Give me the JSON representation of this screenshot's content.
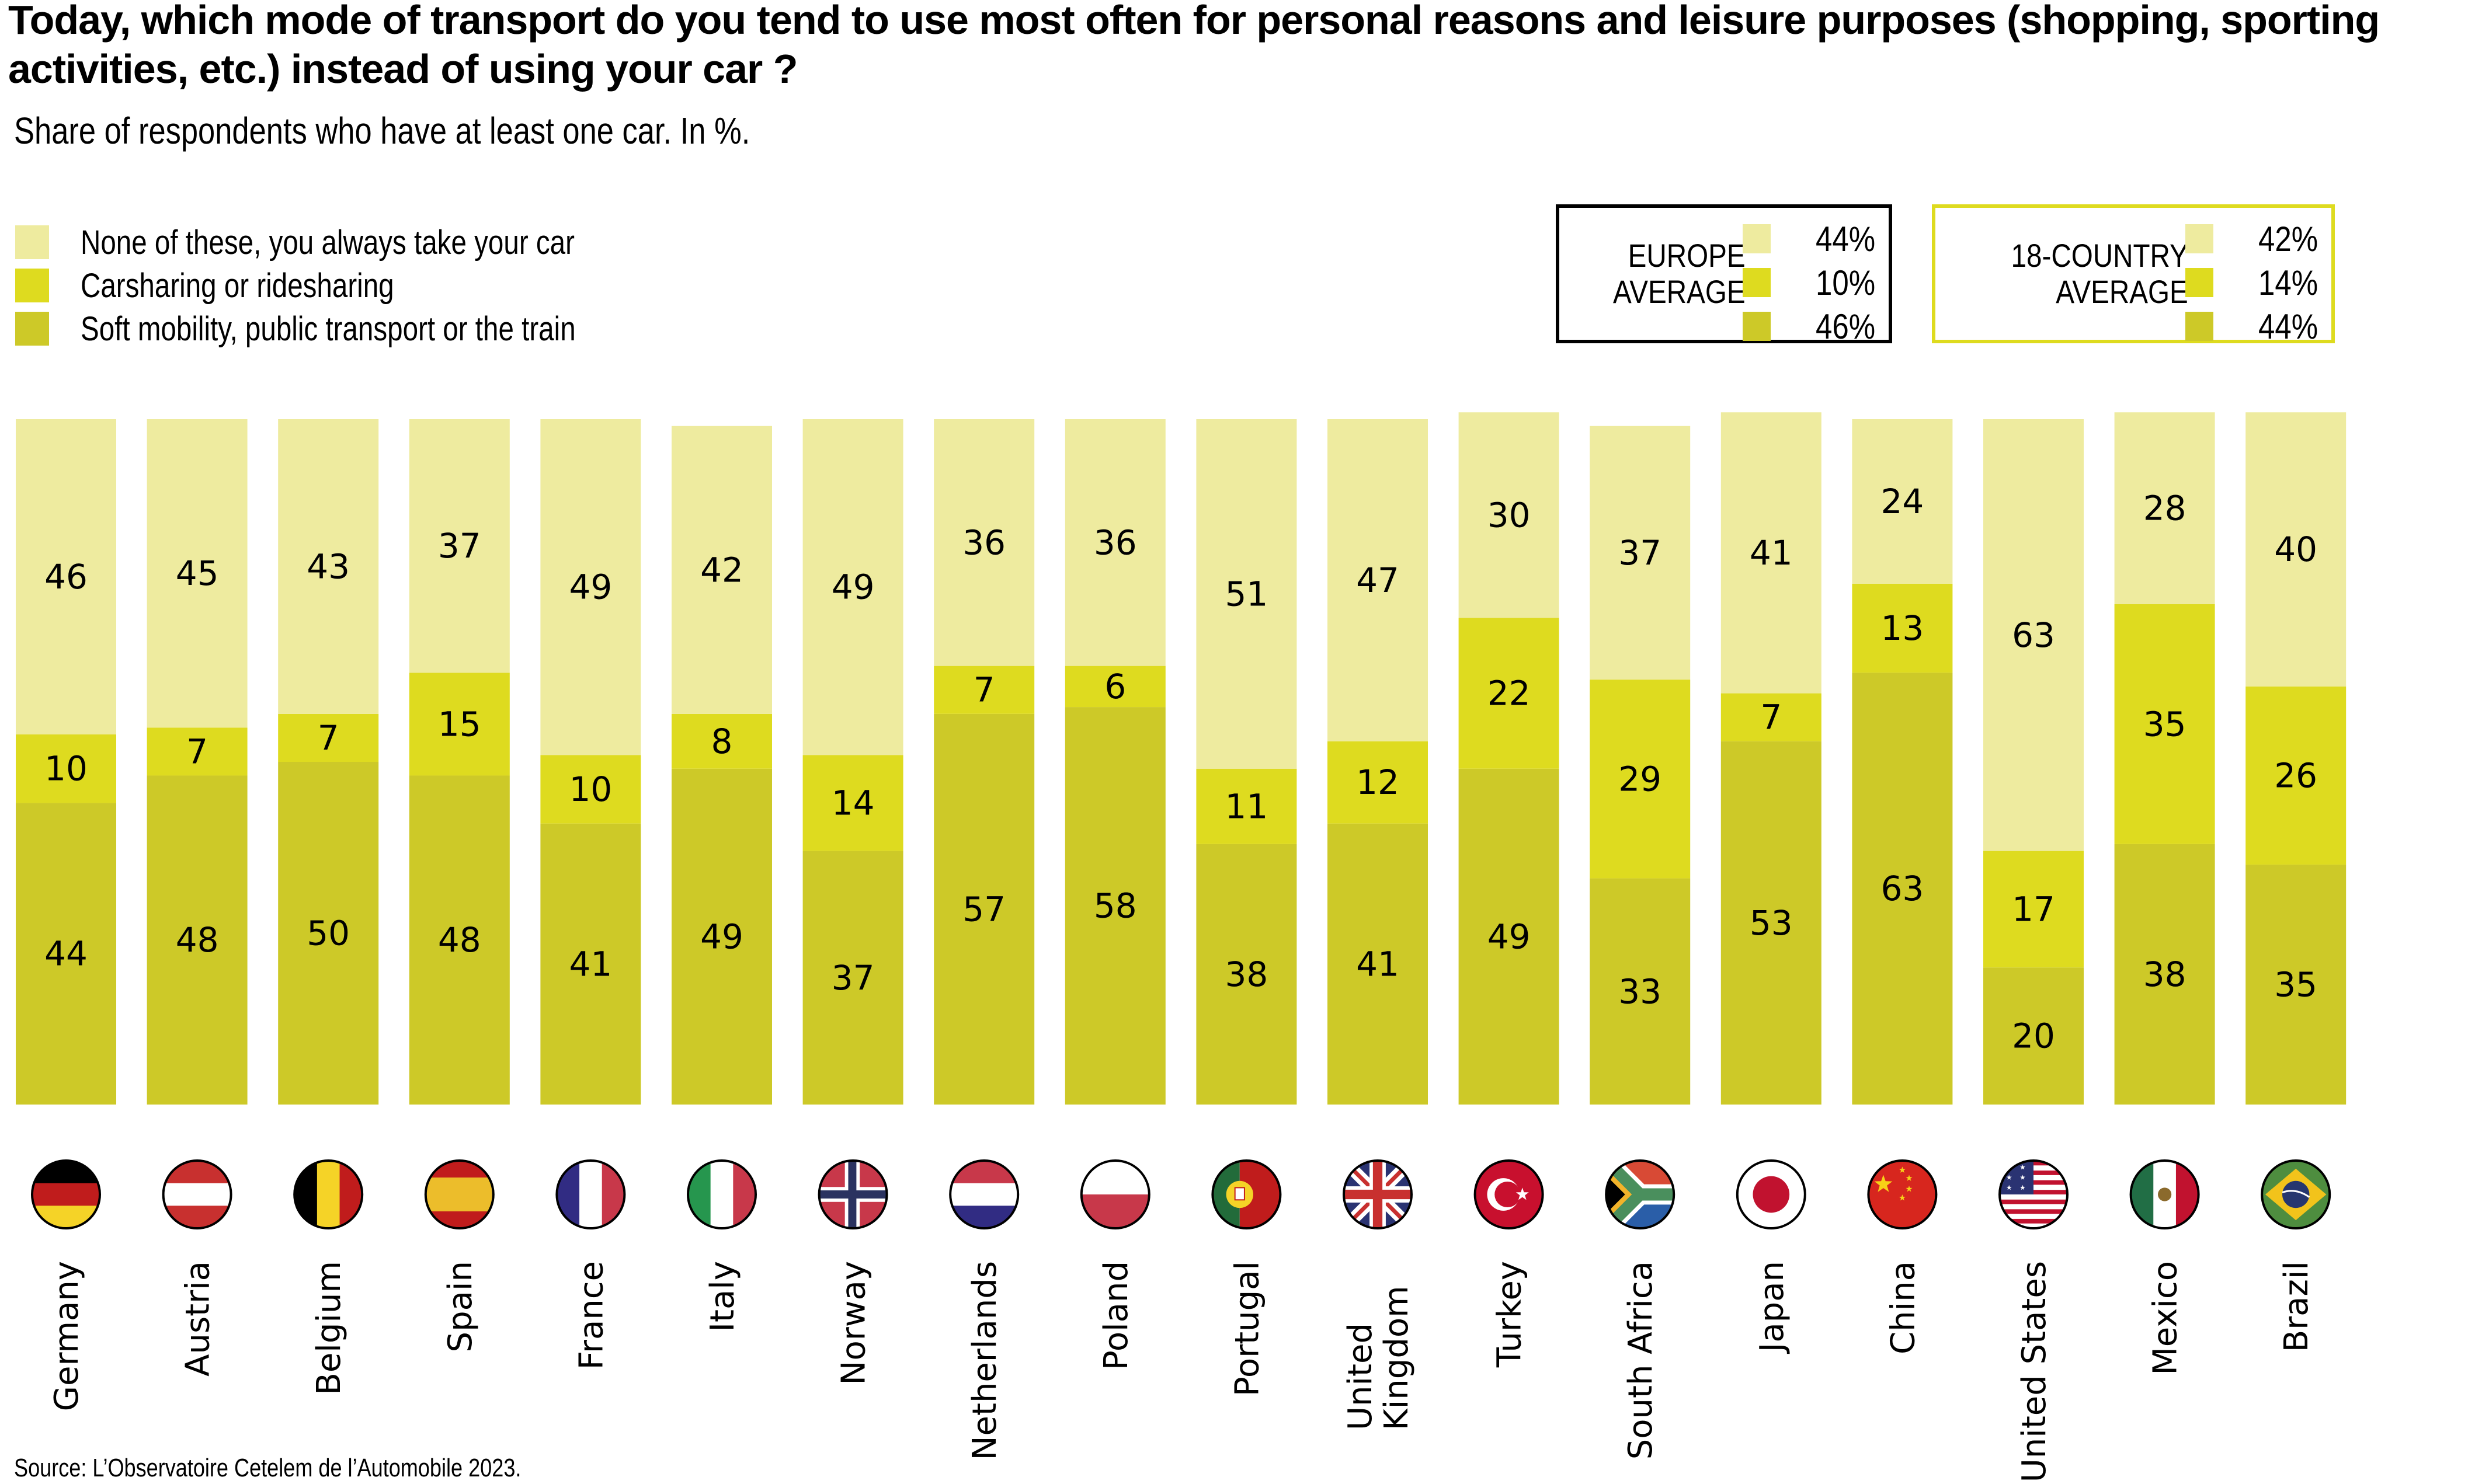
{
  "header": {
    "title": "Today, which mode of transport do you tend to use most often for personal reasons and leisure purposes (shopping, sporting activities, etc.) instead of using your car ?",
    "subtitle": "Share of respondents who have at least one car. In %."
  },
  "legend": {
    "items": [
      {
        "label": "None of these, you always take your car",
        "color": "#eeeb9f"
      },
      {
        "label": "Carsharing or ridesharing",
        "color": "#dedb1f"
      },
      {
        "label": "Soft mobility, public transport or the train",
        "color": "#cdc928"
      }
    ]
  },
  "averages": {
    "europe": {
      "label_line1": "EUROPE",
      "label_line2": "AVERAGE",
      "values": [
        "44%",
        "10%",
        "46%"
      ]
    },
    "country18": {
      "label_line1": "18-COUNTRY",
      "label_line2": "AVERAGE",
      "values": [
        "42%",
        "14%",
        "44%"
      ]
    }
  },
  "source": "Source: L’Observatoire Cetelem de l’Automobile 2023.",
  "chart_data": {
    "type": "bar",
    "stacked": true,
    "orientation": "vertical",
    "title": "Today, which mode of transport do you tend to use most often for personal reasons and leisure purposes (shopping, sporting activities, etc.) instead of using your car ?",
    "subtitle": "Share of respondents who have at least one car. In %.",
    "xlabel": "",
    "ylabel": "",
    "ylim": [
      0,
      100
    ],
    "grid": false,
    "legend_position": "top-left",
    "categories": [
      "Germany",
      "Austria",
      "Belgium",
      "Spain",
      "France",
      "Italy",
      "Norway",
      "Netherlands",
      "Poland",
      "Portugal",
      "United Kingdom",
      "Turkey",
      "South Africa",
      "Japan",
      "China",
      "United States",
      "Mexico",
      "Brazil"
    ],
    "category_lines": [
      [
        "Germany"
      ],
      [
        "Austria"
      ],
      [
        "Belgium"
      ],
      [
        "Spain"
      ],
      [
        "France"
      ],
      [
        "Italy"
      ],
      [
        "Norway"
      ],
      [
        "Netherlands"
      ],
      [
        "Poland"
      ],
      [
        "Portugal"
      ],
      [
        "United",
        "Kingdom"
      ],
      [
        "Turkey"
      ],
      [
        "South Africa"
      ],
      [
        "Japan"
      ],
      [
        "China"
      ],
      [
        "United States"
      ],
      [
        "Mexico"
      ],
      [
        "Brazil"
      ]
    ],
    "flags": [
      "germany-flag",
      "austria-flag",
      "belgium-flag",
      "spain-flag",
      "france-flag",
      "italy-flag",
      "norway-flag",
      "netherlands-flag",
      "poland-flag",
      "portugal-flag",
      "uk-flag",
      "turkey-flag",
      "south-africa-flag",
      "japan-flag",
      "china-flag",
      "usa-flag",
      "mexico-flag",
      "brazil-flag"
    ],
    "series": [
      {
        "name": "Soft mobility, public transport or the train",
        "color": "#cdc928",
        "values": [
          44,
          48,
          50,
          48,
          41,
          49,
          37,
          57,
          58,
          38,
          41,
          49,
          33,
          53,
          63,
          20,
          38,
          35
        ]
      },
      {
        "name": "Carsharing or ridesharing",
        "color": "#dedb1f",
        "values": [
          10,
          7,
          7,
          15,
          10,
          8,
          14,
          7,
          6,
          11,
          12,
          22,
          29,
          7,
          13,
          17,
          35,
          26
        ]
      },
      {
        "name": "None of these, you always take your car",
        "color": "#eeeb9f",
        "values": [
          46,
          45,
          43,
          37,
          49,
          42,
          49,
          36,
          36,
          51,
          47,
          30,
          37,
          41,
          24,
          63,
          28,
          40
        ]
      }
    ]
  }
}
